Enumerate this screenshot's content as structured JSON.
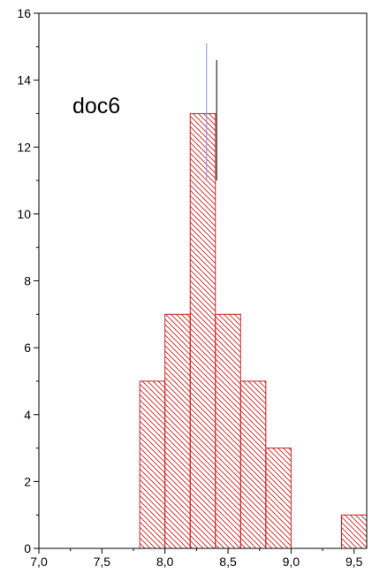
{
  "chart_data": {
    "type": "bar",
    "title": "",
    "xlabel": "",
    "ylabel": "",
    "xlim": [
      7.0,
      9.6
    ],
    "ylim": [
      0,
      16
    ],
    "bin_width": 0.2,
    "bins": [
      {
        "x0": 7.8,
        "x1": 8.0,
        "count": 5
      },
      {
        "x0": 8.0,
        "x1": 8.2,
        "count": 7
      },
      {
        "x0": 8.2,
        "x1": 8.4,
        "count": 13
      },
      {
        "x0": 8.4,
        "x1": 8.6,
        "count": 7
      },
      {
        "x0": 8.6,
        "x1": 8.8,
        "count": 5
      },
      {
        "x0": 8.8,
        "x1": 9.0,
        "count": 3
      },
      {
        "x0": 9.4,
        "x1": 9.6,
        "count": 1
      }
    ],
    "x_ticks": [
      {
        "value": 7.0,
        "label": "7,0"
      },
      {
        "value": 7.5,
        "label": "7,5"
      },
      {
        "value": 8.0,
        "label": "8,0"
      },
      {
        "value": 8.5,
        "label": "8,5"
      },
      {
        "value": 9.0,
        "label": "9,0"
      },
      {
        "value": 9.5,
        "label": "9,5"
      }
    ],
    "y_ticks": [
      0,
      2,
      4,
      6,
      8,
      10,
      12,
      14,
      16
    ],
    "annotation": "doc6",
    "reference_lines": [
      {
        "x": 8.33,
        "y0": 11,
        "y1": 15.1,
        "color": "#8a8ae6"
      },
      {
        "x": 8.41,
        "y0": 11,
        "y1": 14.6,
        "color": "#000000"
      }
    ],
    "colors": {
      "bar_edge": "#cc2222",
      "hatch": "#cc2222",
      "axis": "#000000"
    },
    "grid": false,
    "hatch": "diagonal"
  }
}
